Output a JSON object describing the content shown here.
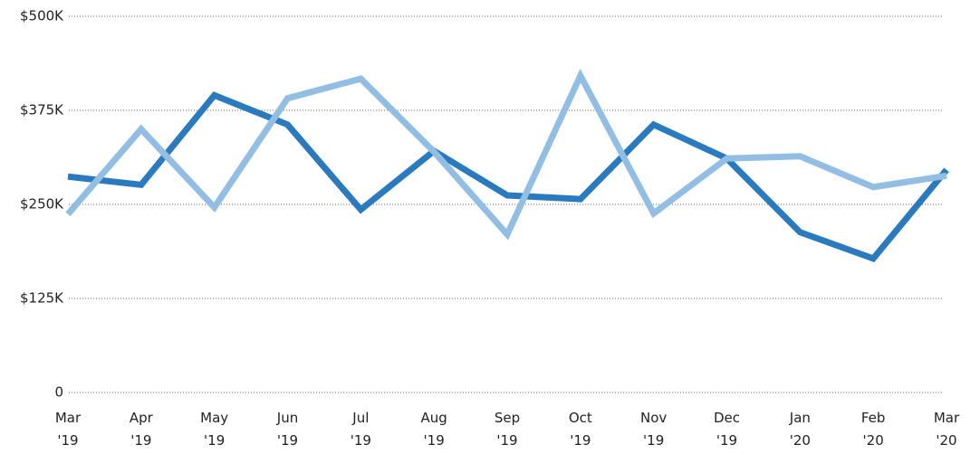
{
  "chart_data": {
    "type": "line",
    "categories": [
      "Mar '19",
      "Apr '19",
      "May '19",
      "Jun '19",
      "Jul '19",
      "Aug '19",
      "Sep '19",
      "Oct '19",
      "Nov '19",
      "Dec '19",
      "Jan '20",
      "Feb '20",
      "Mar '20"
    ],
    "series": [
      {
        "color": "#2a7ac0",
        "values": [
          287000,
          276000,
          395000,
          356000,
          243000,
          321000,
          262000,
          257000,
          356000,
          311000,
          213000,
          178000,
          296000
        ]
      },
      {
        "color": "#93bee4",
        "values": [
          237000,
          350000,
          246000,
          391000,
          417000,
          320000,
          210000,
          421000,
          238000,
          311000,
          314000,
          273000,
          288000
        ]
      }
    ],
    "ylim": [
      0,
      500000
    ],
    "yticks": [
      0,
      {
        "value": 125000,
        "label": "$125K"
      },
      {
        "value": 250000,
        "label": "$250K"
      },
      {
        "value": 375000,
        "label": "$375K"
      },
      {
        "value": 500000,
        "label": "$500K"
      }
    ],
    "grid": true
  }
}
